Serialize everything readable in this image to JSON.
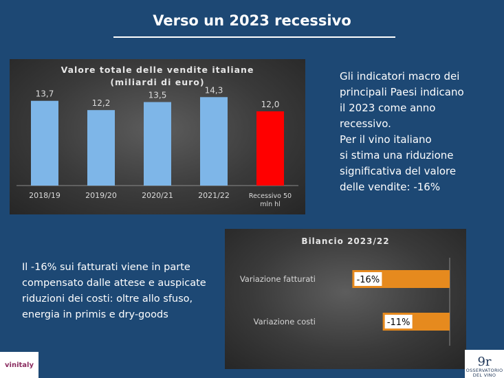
{
  "slide": {
    "title": "Verso un 2023 recessivo"
  },
  "right_text": [
    "Gli indicatori macro dei",
    "principali Paesi indicano",
    "il 2023 come anno",
    "recessivo.",
    "Per il vino italiano",
    "si stima una riduzione",
    "significativa del valore",
    "delle vendite: -16%"
  ],
  "left_text": [
    "Il -16% sui fatturati viene in parte",
    "compensato dalle attese e auspicate",
    "riduzioni dei costi: oltre allo sfuso,",
    "energia in primis e dry-goods"
  ],
  "logos": {
    "left": "vinitaly",
    "right_mark": "9r",
    "right_text": [
      "OSSERVATORIO",
      "DEL VINO"
    ]
  },
  "chart_data": [
    {
      "type": "bar",
      "title": [
        "Valore totale delle vendite italiane",
        "(miliardi di euro)"
      ],
      "categories": [
        [
          "2018/19"
        ],
        [
          "2019/20"
        ],
        [
          "2020/21"
        ],
        [
          "2021/22"
        ],
        [
          "Recessivo 50",
          "mln hl"
        ]
      ],
      "values": [
        13.7,
        12.2,
        13.5,
        14.3,
        12.0
      ],
      "value_labels": [
        "13,7",
        "12,2",
        "13,5",
        "14,3",
        "12,0"
      ],
      "colors": [
        "#7eb6e8",
        "#7eb6e8",
        "#7eb6e8",
        "#7eb6e8",
        "#ff0000"
      ],
      "ylim": [
        0,
        16
      ],
      "grid": false
    },
    {
      "type": "bar",
      "orientation": "horizontal",
      "title": "Bilancio 2023/22",
      "categories": [
        "Variazione fatturati",
        "Variazione costi"
      ],
      "values": [
        -16,
        -11
      ],
      "value_labels": [
        "-16%",
        "-11%"
      ],
      "color": "#e68a1e",
      "xlim": [
        -20,
        0
      ],
      "grid": false
    }
  ]
}
